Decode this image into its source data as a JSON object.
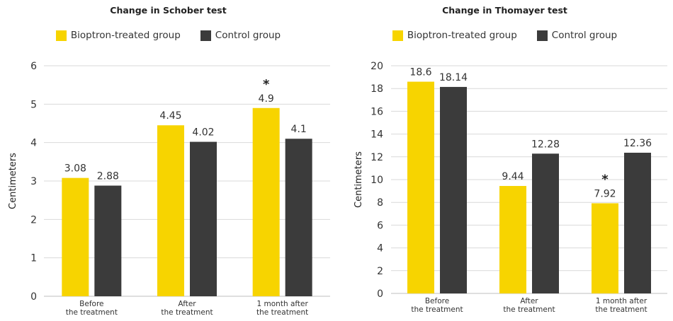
{
  "colors": {
    "treated": "#f7d400",
    "control": "#3b3b3b",
    "grid": "#d9d9d9",
    "axis": "#bfbfbf"
  },
  "legend": {
    "treated_label": "Bioptron-treated group",
    "control_label": "Control group"
  },
  "chart_data": [
    {
      "type": "bar",
      "title": "Change in Schober test",
      "xlabel": "",
      "ylabel": "Centimeters",
      "ylim": [
        0,
        6
      ],
      "yticks": [
        0,
        1,
        2,
        3,
        4,
        5,
        6
      ],
      "grid": true,
      "legend_position": "top",
      "categories": [
        [
          "Before",
          "the treatment"
        ],
        [
          "After",
          "the treatment"
        ],
        [
          "1 month after",
          "the treatment"
        ]
      ],
      "series": [
        {
          "name": "Bioptron-treated group",
          "values": [
            3.08,
            4.45,
            4.9
          ]
        },
        {
          "name": "Control group",
          "values": [
            2.88,
            4.02,
            4.1
          ]
        }
      ],
      "annotations": [
        {
          "category_index": 2,
          "series_index": 0,
          "text": "*"
        }
      ]
    },
    {
      "type": "bar",
      "title": "Change in Thomayer test",
      "xlabel": "",
      "ylabel": "Centimeters",
      "ylim": [
        0,
        20
      ],
      "yticks": [
        0,
        2,
        4,
        6,
        8,
        10,
        12,
        14,
        16,
        18,
        20
      ],
      "grid": true,
      "legend_position": "top",
      "categories": [
        [
          "Before",
          "the treatment"
        ],
        [
          "After",
          "the treatment"
        ],
        [
          "1 month after",
          "the treatment"
        ]
      ],
      "series": [
        {
          "name": "Bioptron-treated group",
          "values": [
            18.6,
            9.44,
            7.92
          ]
        },
        {
          "name": "Control group",
          "values": [
            18.14,
            12.28,
            12.36
          ]
        }
      ],
      "annotations": [
        {
          "category_index": 2,
          "series_index": 0,
          "text": "*"
        }
      ]
    }
  ]
}
